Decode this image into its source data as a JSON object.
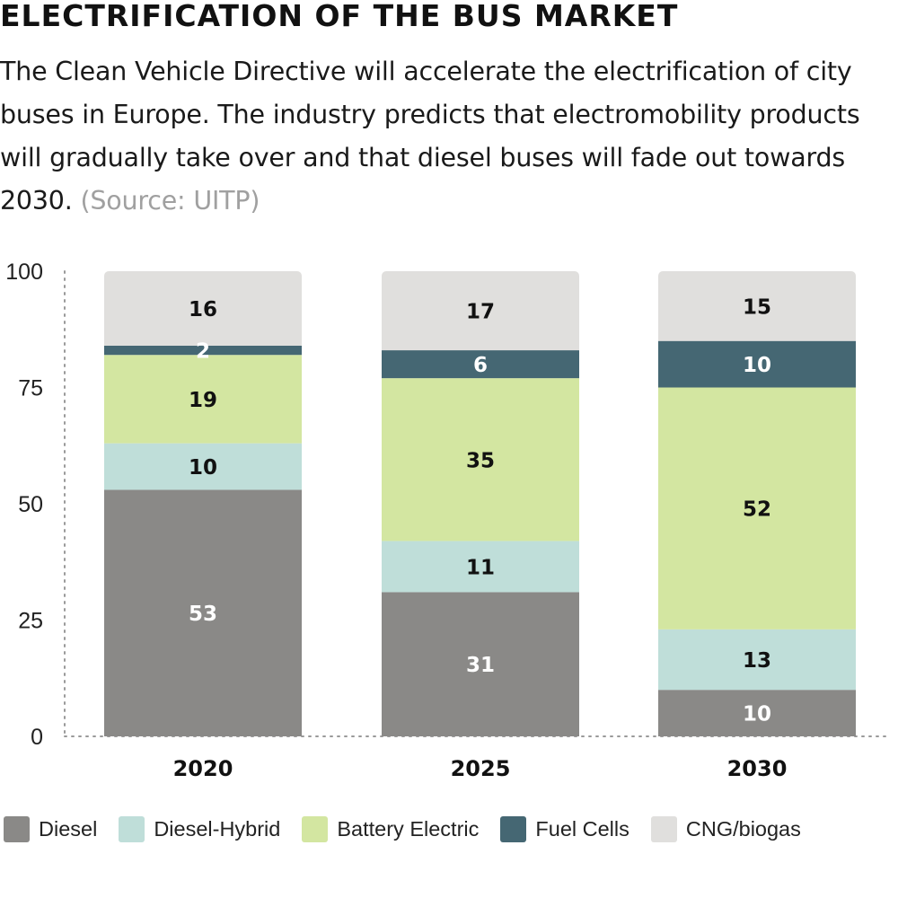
{
  "header": {
    "title": "ELECTRIFICATION OF THE BUS MARKET",
    "subtitle": "The Clean Vehicle Directive will accelerate the electrification of city buses in Europe. The industry predicts that electromobility products will gradually take over and that diesel buses will fade out towards 2030.",
    "source": "(Source: UITP)"
  },
  "legend": [
    {
      "label": "Diesel",
      "color": "#8a8987"
    },
    {
      "label": "Diesel-Hybrid",
      "color": "#bfded9"
    },
    {
      "label": "Battery Electric",
      "color": "#d3e6a1"
    },
    {
      "label": "Fuel Cells",
      "color": "#456773"
    },
    {
      "label": "CNG/biogas",
      "color": "#e0dfdd"
    }
  ],
  "chart_data": {
    "type": "bar",
    "stacked": true,
    "categories": [
      "2020",
      "2025",
      "2030"
    ],
    "series": [
      {
        "name": "Diesel",
        "values": [
          53,
          31,
          10
        ],
        "color": "#8a8987",
        "label_color": "#ffffff"
      },
      {
        "name": "Diesel-Hybrid",
        "values": [
          10,
          11,
          13
        ],
        "color": "#bfded9",
        "label_color": "#111111"
      },
      {
        "name": "Battery Electric",
        "values": [
          19,
          35,
          52
        ],
        "color": "#d3e6a1",
        "label_color": "#111111"
      },
      {
        "name": "Fuel Cells",
        "values": [
          2,
          6,
          10
        ],
        "color": "#456773",
        "label_color": "#ffffff"
      },
      {
        "name": "CNG/biogas",
        "values": [
          16,
          17,
          15
        ],
        "color": "#e0dfdd",
        "label_color": "#111111"
      }
    ],
    "y_ticks": [
      0,
      25,
      50,
      75,
      100
    ],
    "ylim": [
      0,
      100
    ],
    "grid": false,
    "legend_position": "bottom"
  }
}
